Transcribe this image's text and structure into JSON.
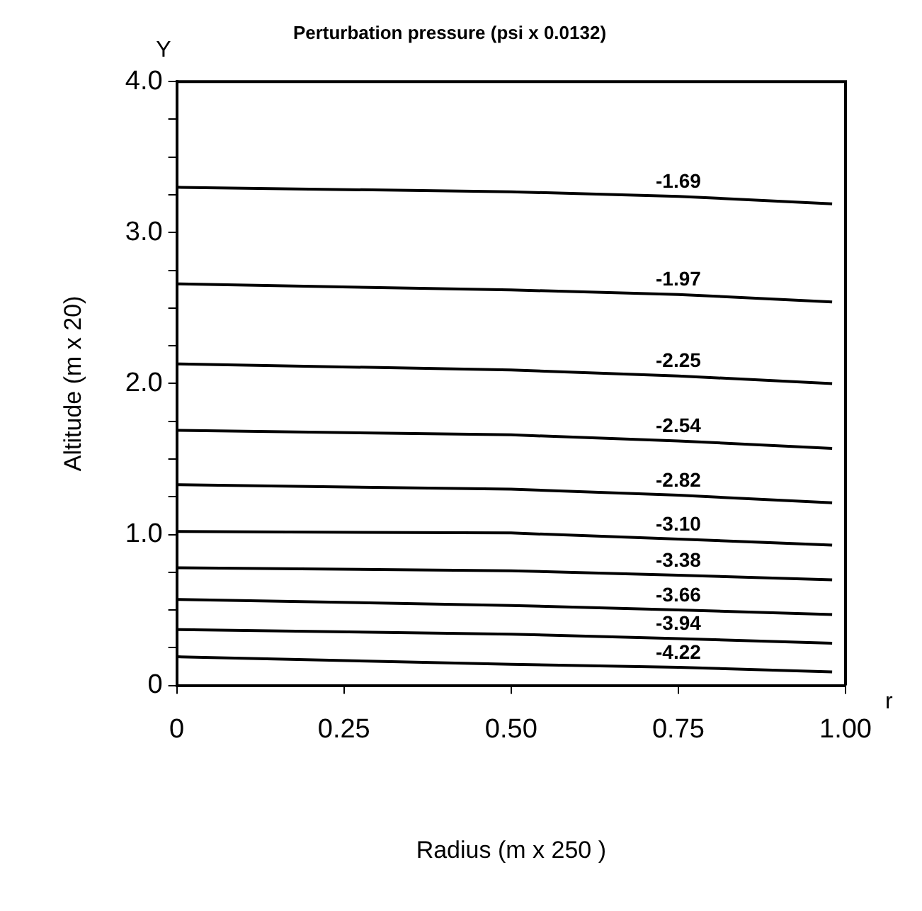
{
  "chart_data": {
    "type": "line",
    "title": "Perturbation pressure (psi x 0.0132)",
    "xlabel": "Radius (m x 250 )",
    "ylabel": "Altitude (m x 20)",
    "annotations": [
      "Y",
      "r"
    ],
    "x": [
      0,
      0.5,
      0.75,
      0.98
    ],
    "series": [
      {
        "name": "-1.69",
        "color": "#000000",
        "values": [
          3.3,
          3.27,
          3.24,
          3.19
        ]
      },
      {
        "name": "-1.97",
        "color": "#000000",
        "values": [
          2.66,
          2.62,
          2.59,
          2.54
        ]
      },
      {
        "name": "-2.25",
        "color": "#000000",
        "values": [
          2.13,
          2.09,
          2.05,
          2.0
        ]
      },
      {
        "name": "-2.54",
        "color": "#000000",
        "values": [
          1.69,
          1.66,
          1.62,
          1.57
        ]
      },
      {
        "name": "-2.82",
        "color": "#000000",
        "values": [
          1.33,
          1.3,
          1.26,
          1.21
        ]
      },
      {
        "name": "-3.10",
        "color": "#000000",
        "values": [
          1.02,
          1.01,
          0.97,
          0.93
        ]
      },
      {
        "name": "-3.38",
        "color": "#000000",
        "values": [
          0.78,
          0.76,
          0.73,
          0.7
        ]
      },
      {
        "name": "-3.66",
        "color": "#000000",
        "values": [
          0.57,
          0.53,
          0.5,
          0.47
        ]
      },
      {
        "name": "-3.94",
        "color": "#000000",
        "values": [
          0.37,
          0.34,
          0.31,
          0.28
        ]
      },
      {
        "name": "-4.22",
        "color": "#000000",
        "values": [
          0.19,
          0.14,
          0.12,
          0.09
        ]
      }
    ],
    "xlim": [
      0,
      1
    ],
    "ylim": [
      0,
      4
    ],
    "xticks": [
      0,
      0.25,
      {
        "value": 0.5,
        "label": "0.50"
      },
      0.75,
      {
        "value": 1,
        "label": "1.00"
      }
    ],
    "yticks": [
      {
        "value": 0,
        "label": "0"
      },
      {
        "value": 0.25,
        "label": null
      },
      {
        "value": 0.5,
        "label": null
      },
      {
        "value": 0.75,
        "label": null
      },
      {
        "value": 1,
        "label": "1.0"
      },
      {
        "value": 1.25,
        "label": null
      },
      {
        "value": 1.5,
        "label": null
      },
      {
        "value": 1.75,
        "label": null
      },
      {
        "value": 2,
        "label": "2.0"
      },
      {
        "value": 2.25,
        "label": null
      },
      {
        "value": 2.5,
        "label": null
      },
      {
        "value": 2.75,
        "label": null
      },
      {
        "value": 3,
        "label": "3.0"
      },
      {
        "value": 3.25,
        "label": null
      },
      {
        "value": 3.5,
        "label": null
      },
      {
        "value": 3.75,
        "label": null
      },
      {
        "value": 4,
        "label": "4.0"
      }
    ],
    "grid": false,
    "legend": false,
    "marker": "none",
    "line_style": "solid"
  }
}
